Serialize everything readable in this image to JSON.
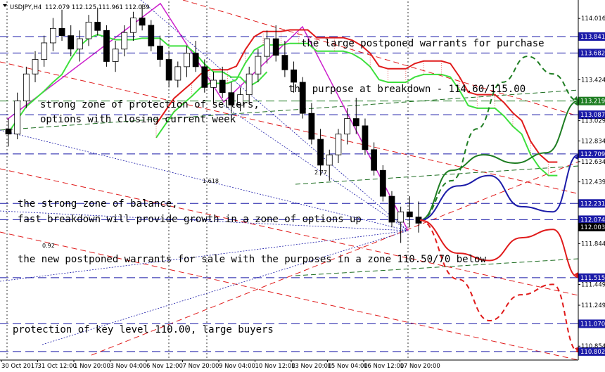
{
  "header": {
    "symbol": "USDJPY,H4",
    "ohlc": "112.079 112.125 111.961 112.039"
  },
  "chart_data": {
    "type": "candlestick",
    "ylim": [
      110.72,
      114.18
    ],
    "price_ticks": [
      114.016,
      113.424,
      113.029,
      112.834,
      112.634,
      112.439,
      111.844,
      111.449,
      111.249,
      110.854
    ],
    "level_tags": [
      {
        "value": 113.841,
        "color": "#1b1ba8"
      },
      {
        "value": 113.682,
        "color": "#1b1ba8"
      },
      {
        "value": 113.219,
        "color": "#1e7d22"
      },
      {
        "value": 113.087,
        "color": "#1b1ba8"
      },
      {
        "value": 112.709,
        "color": "#1b1ba8"
      },
      {
        "value": 112.231,
        "color": "#1b1ba8"
      },
      {
        "value": 112.074,
        "color": "#1b1ba8"
      },
      {
        "value": 112.003,
        "color": "#000000"
      },
      {
        "value": 111.515,
        "color": "#1b1ba8"
      },
      {
        "value": 111.07,
        "color": "#1b1ba8"
      },
      {
        "value": 110.802,
        "color": "#1b1ba8"
      }
    ],
    "time_labels": [
      "30 Oct 2017",
      "31 Oct 12:00",
      "1 Nov 20:00",
      "3 Nov 04:00",
      "6 Nov 12:00",
      "7 Nov 20:00",
      "9 Nov 04:00",
      "10 Nov 12:00",
      "13 Nov 20:00",
      "15 Nov 04:00",
      "16 Nov 12:00",
      "17 Nov 20:00"
    ],
    "candles": [
      [
        112.95,
        113.05,
        112.78,
        112.9
      ],
      [
        112.9,
        113.3,
        112.85,
        113.22
      ],
      [
        113.22,
        113.55,
        113.15,
        113.48
      ],
      [
        113.48,
        113.7,
        113.4,
        113.62
      ],
      [
        113.62,
        113.85,
        113.55,
        113.78
      ],
      [
        113.78,
        114.02,
        113.7,
        113.92
      ],
      [
        113.92,
        114.1,
        113.8,
        113.85
      ],
      [
        113.85,
        113.95,
        113.65,
        113.72
      ],
      [
        113.72,
        113.9,
        113.6,
        113.82
      ],
      [
        113.82,
        114.05,
        113.75,
        113.98
      ],
      [
        113.98,
        114.12,
        113.85,
        113.9
      ],
      [
        113.9,
        113.95,
        113.55,
        113.6
      ],
      [
        113.6,
        113.8,
        113.5,
        113.72
      ],
      [
        113.72,
        113.95,
        113.65,
        113.88
      ],
      [
        113.88,
        114.08,
        113.8,
        114.02
      ],
      [
        114.02,
        114.15,
        113.9,
        113.95
      ],
      [
        113.95,
        114.0,
        113.7,
        113.75
      ],
      [
        113.75,
        113.85,
        113.55,
        113.62
      ],
      [
        113.62,
        113.7,
        113.35,
        113.42
      ],
      [
        113.42,
        113.6,
        113.35,
        113.55
      ],
      [
        113.55,
        113.75,
        113.45,
        113.68
      ],
      [
        113.68,
        113.8,
        113.5,
        113.55
      ],
      [
        113.55,
        113.62,
        113.3,
        113.35
      ],
      [
        113.35,
        113.5,
        113.2,
        113.42
      ],
      [
        113.42,
        113.55,
        113.25,
        113.3
      ],
      [
        113.3,
        113.4,
        113.1,
        113.18
      ],
      [
        113.18,
        113.35,
        113.12,
        113.28
      ],
      [
        113.28,
        113.55,
        113.2,
        113.48
      ],
      [
        113.48,
        113.72,
        113.4,
        113.65
      ],
      [
        113.65,
        113.9,
        113.58,
        113.82
      ],
      [
        113.82,
        113.95,
        113.6,
        113.66
      ],
      [
        113.66,
        113.8,
        113.45,
        113.52
      ],
      [
        113.52,
        113.6,
        113.3,
        113.4
      ],
      [
        113.4,
        113.45,
        113.05,
        113.1
      ],
      [
        113.1,
        113.2,
        112.8,
        112.85
      ],
      [
        112.85,
        112.95,
        112.5,
        112.6
      ],
      [
        112.6,
        112.75,
        112.45,
        112.7
      ],
      [
        112.7,
        112.95,
        112.62,
        112.9
      ],
      [
        112.9,
        113.15,
        112.8,
        113.05
      ],
      [
        113.05,
        113.25,
        112.9,
        112.98
      ],
      [
        112.98,
        113.05,
        112.7,
        112.75
      ],
      [
        112.75,
        112.82,
        112.5,
        112.55
      ],
      [
        112.55,
        112.6,
        112.25,
        112.3
      ],
      [
        112.3,
        112.35,
        112.0,
        112.05
      ],
      [
        112.05,
        112.2,
        111.85,
        112.15
      ],
      [
        112.15,
        112.3,
        112.0,
        112.1
      ],
      [
        112.1,
        112.25,
        111.95,
        112.04
      ]
    ],
    "projections": [
      {
        "name": "up-dashed",
        "color": "#1e7d22",
        "style": "dash",
        "x": [
          0,
          10,
          18,
          26,
          34,
          42,
          50
        ],
        "y": [
          112.07,
          112.45,
          112.95,
          113.4,
          113.65,
          113.48,
          113.22
        ]
      },
      {
        "name": "up-solid",
        "color": "#1e7d22",
        "style": "solid",
        "x": [
          0,
          10,
          20,
          30,
          40,
          50
        ],
        "y": [
          112.07,
          112.55,
          112.7,
          112.62,
          112.72,
          113.22
        ]
      },
      {
        "name": "up-navy",
        "color": "#1b1ba8",
        "style": "solid",
        "x": [
          0,
          12,
          22,
          32,
          42,
          50
        ],
        "y": [
          112.07,
          112.4,
          112.5,
          112.2,
          112.15,
          112.7
        ]
      },
      {
        "name": "down-solid",
        "color": "#e01b1b",
        "style": "solid",
        "x": [
          0,
          12,
          22,
          32,
          42,
          50
        ],
        "y": [
          112.07,
          111.75,
          111.68,
          111.9,
          111.98,
          111.52
        ]
      },
      {
        "name": "down-dashed",
        "color": "#e01b1b",
        "style": "dash",
        "x": [
          0,
          12,
          22,
          32,
          42,
          50
        ],
        "y": [
          112.07,
          111.5,
          111.1,
          111.35,
          111.45,
          110.8
        ]
      }
    ],
    "labels": {
      "fib_1618": "1.618",
      "fib_277": "2.77",
      "fib_092": "0.92"
    }
  },
  "annotations": {
    "warrants_purchase": "the large postponed warrants for purchase",
    "purpose_breakdown": "the purpose at breakdown - 114.60/115.00",
    "sellers_zone_1": "strong zone of protection of sellers,",
    "sellers_zone_2": "options with closing current week",
    "balance_1": "the strong zone of balance,",
    "balance_2": "fast breakdown will provide growth in a zone of options up",
    "warrants_sale": "the new postponed warrants for sale with the purposes in a zone 110.50/70 below",
    "key_level": "protection of key level 110.00, large buyers"
  }
}
